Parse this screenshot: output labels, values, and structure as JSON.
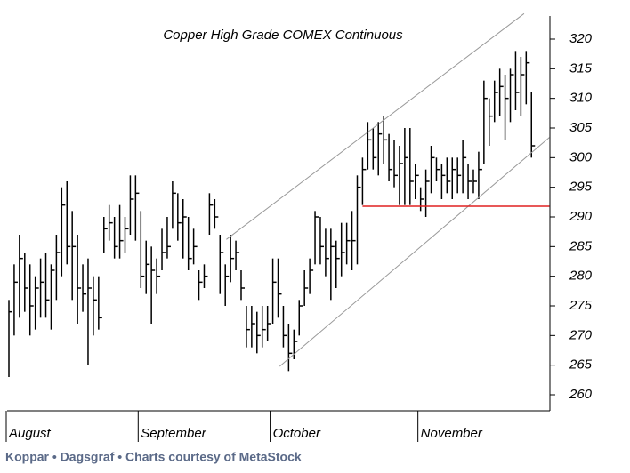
{
  "chart_data": {
    "type": "ohlc",
    "title": "Copper High Grade COMEX Continuous",
    "caption": "Koppar • Dagsgraf • Charts courtesy of MetaStock",
    "color": "#000000",
    "ylim": [
      257,
      323
    ],
    "yticks": [
      260,
      265,
      270,
      275,
      280,
      285,
      290,
      295,
      300,
      305,
      310,
      315,
      320
    ],
    "xlim": [
      0,
      102.5
    ],
    "xticks": [
      {
        "value": 0,
        "label": "August"
      },
      {
        "value": 25,
        "label": "September"
      },
      {
        "value": 50,
        "label": "October"
      },
      {
        "value": 78,
        "label": "November"
      }
    ],
    "high": [
      276,
      282,
      287,
      284,
      282,
      280,
      283,
      284,
      282,
      287,
      295,
      296,
      291,
      287,
      282,
      283,
      280,
      280,
      290,
      292,
      290,
      292,
      290,
      297,
      297,
      291,
      286,
      285,
      283,
      288,
      290,
      296,
      294,
      293,
      290,
      288,
      281,
      282,
      294,
      293,
      287,
      282,
      287,
      286,
      281,
      275,
      275,
      274,
      275,
      275,
      283,
      283,
      275,
      272,
      271,
      276,
      281,
      283,
      291,
      290,
      288,
      288,
      286,
      289,
      289,
      291,
      297,
      300,
      306,
      305,
      306,
      307,
      304,
      303,
      302,
      305,
      305,
      299,
      295,
      298,
      302,
      300,
      299,
      300,
      300,
      300,
      303,
      299,
      298,
      301,
      313,
      310,
      313,
      315,
      314,
      315,
      318,
      317,
      318,
      311
    ],
    "low": [
      263,
      270,
      273,
      274,
      270,
      271,
      273,
      273,
      271,
      276,
      280,
      282,
      276,
      272,
      274,
      265,
      270,
      271,
      284,
      286,
      283,
      283,
      284,
      287,
      286,
      278,
      277,
      272,
      277,
      281,
      283,
      288,
      286,
      283,
      281,
      282,
      276,
      278,
      287,
      288,
      277,
      275,
      279,
      281,
      276,
      268,
      268,
      267,
      268,
      269,
      272,
      273,
      268,
      264,
      266,
      270,
      275,
      277,
      282,
      282,
      280,
      276,
      278,
      280,
      282,
      281,
      282,
      292,
      298,
      298,
      297,
      299,
      296,
      295,
      292,
      292,
      292,
      293,
      291,
      290,
      294,
      296,
      293,
      294,
      293,
      294,
      294,
      293,
      294,
      293,
      299,
      302,
      306,
      307,
      303,
      306,
      308,
      307,
      309,
      300
    ],
    "close": [
      274,
      279,
      283,
      278,
      275,
      278,
      279,
      276,
      281,
      284,
      292,
      285,
      285,
      278,
      277,
      278,
      276,
      273,
      288,
      289,
      285,
      286,
      288,
      293,
      294,
      280,
      282,
      281,
      280,
      284,
      285,
      294,
      289,
      290,
      283,
      285,
      279,
      280,
      292,
      290,
      284,
      280,
      283,
      284,
      278,
      271,
      272,
      270,
      271,
      272,
      279,
      277,
      270,
      267,
      269,
      275,
      278,
      281,
      290,
      285,
      283,
      285,
      283,
      284,
      286,
      286,
      295,
      298,
      303,
      300,
      304,
      303,
      298,
      297,
      299,
      300,
      296,
      297,
      293,
      296,
      300,
      298,
      297,
      296,
      298,
      297,
      300,
      296,
      296,
      298,
      310,
      307,
      311,
      312,
      310,
      314,
      311,
      314,
      316,
      302
    ],
    "trendlines": [
      {
        "color": "#999999",
        "from": [
          41.2,
          286.2
        ],
        "to": [
          97.6,
          324.3
        ]
      },
      {
        "color": "#999999",
        "from": [
          51.3,
          264.8
        ],
        "to": [
          102.4,
          303.4
        ]
      },
      {
        "color": "#e02020",
        "from": [
          67,
          291.8
        ],
        "to": [
          102.4,
          291.8
        ]
      }
    ]
  }
}
